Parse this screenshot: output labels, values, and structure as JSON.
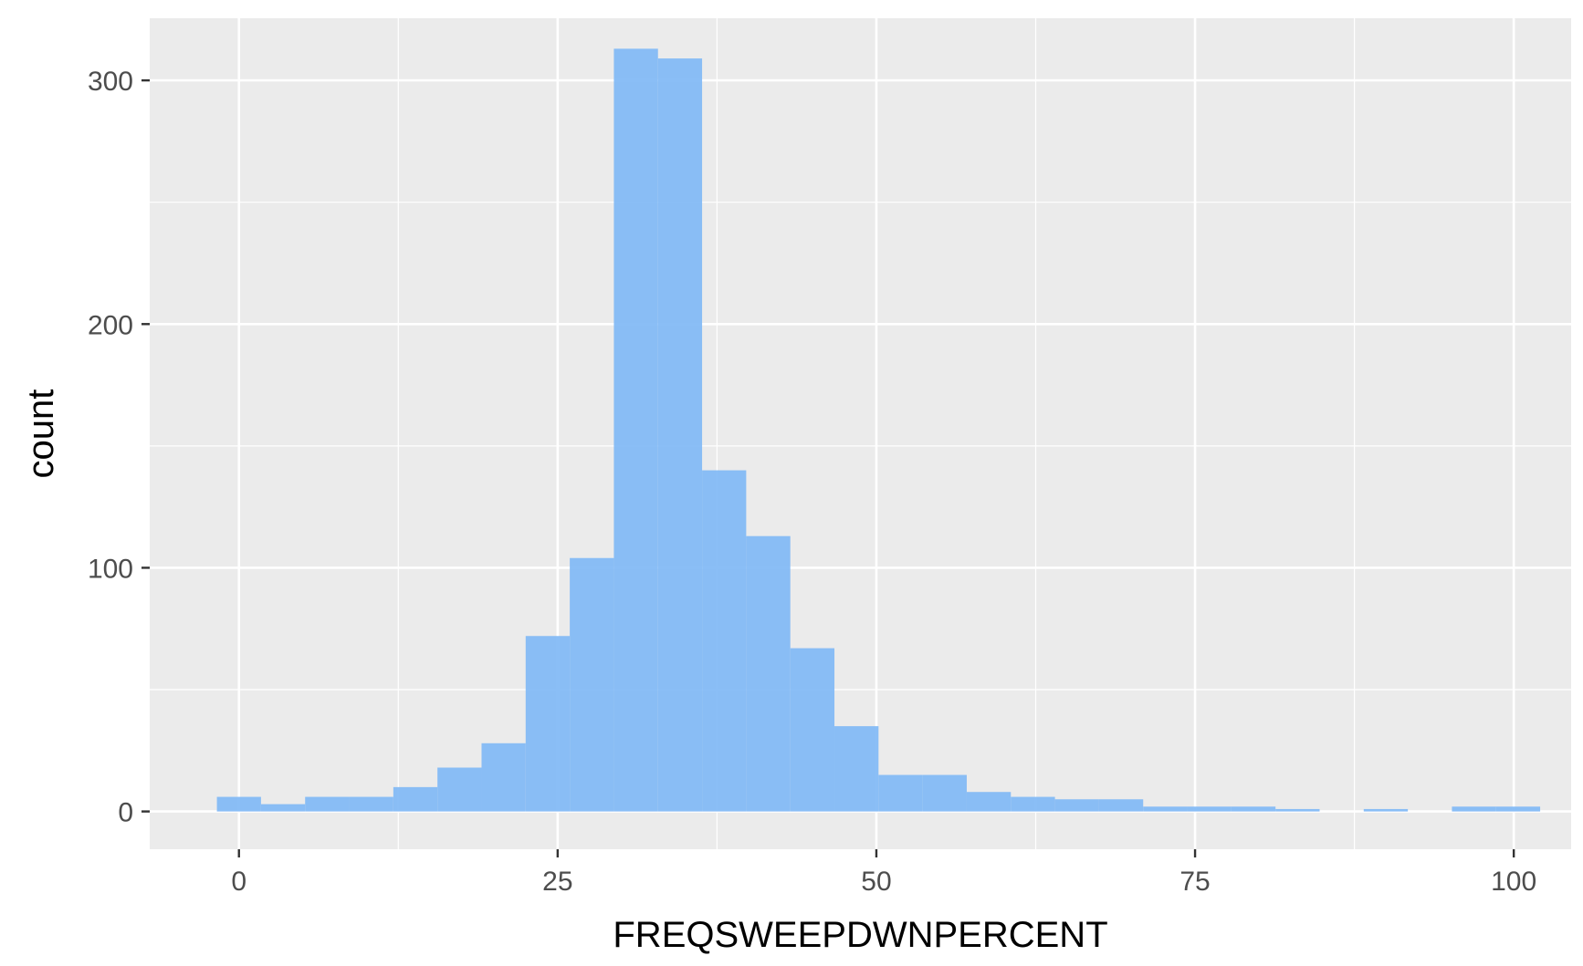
{
  "chart_data": {
    "type": "bar",
    "subtype": "histogram",
    "title": "",
    "xlabel": "FREQSWEEPDWNPERCENT",
    "ylabel": "count",
    "xlim": [
      -7,
      104.5
    ],
    "ylim": [
      -15.5,
      325.5
    ],
    "x_ticks": [
      0,
      25,
      50,
      75,
      100
    ],
    "y_ticks": [
      0,
      100,
      200,
      300
    ],
    "grid": true,
    "legend": "none",
    "bin_width": 3.46,
    "bins": [
      {
        "x0": -1.73,
        "x1": 1.73,
        "count": 6
      },
      {
        "x0": 1.73,
        "x1": 5.19,
        "count": 3
      },
      {
        "x0": 5.19,
        "x1": 8.65,
        "count": 6
      },
      {
        "x0": 8.65,
        "x1": 12.11,
        "count": 6
      },
      {
        "x0": 12.11,
        "x1": 15.57,
        "count": 10
      },
      {
        "x0": 15.57,
        "x1": 19.03,
        "count": 18
      },
      {
        "x0": 19.03,
        "x1": 22.49,
        "count": 28
      },
      {
        "x0": 22.49,
        "x1": 25.95,
        "count": 72
      },
      {
        "x0": 25.95,
        "x1": 29.41,
        "count": 104
      },
      {
        "x0": 29.41,
        "x1": 32.87,
        "count": 313
      },
      {
        "x0": 32.87,
        "x1": 36.33,
        "count": 309
      },
      {
        "x0": 36.33,
        "x1": 39.79,
        "count": 140
      },
      {
        "x0": 39.79,
        "x1": 43.25,
        "count": 113
      },
      {
        "x0": 43.25,
        "x1": 46.71,
        "count": 67
      },
      {
        "x0": 46.71,
        "x1": 50.17,
        "count": 35
      },
      {
        "x0": 50.17,
        "x1": 53.63,
        "count": 15
      },
      {
        "x0": 53.63,
        "x1": 57.09,
        "count": 15
      },
      {
        "x0": 57.09,
        "x1": 60.55,
        "count": 8
      },
      {
        "x0": 60.55,
        "x1": 64.01,
        "count": 6
      },
      {
        "x0": 64.01,
        "x1": 67.47,
        "count": 5
      },
      {
        "x0": 67.47,
        "x1": 70.93,
        "count": 5
      },
      {
        "x0": 70.93,
        "x1": 74.39,
        "count": 2
      },
      {
        "x0": 74.39,
        "x1": 77.85,
        "count": 2
      },
      {
        "x0": 77.85,
        "x1": 81.31,
        "count": 2
      },
      {
        "x0": 81.31,
        "x1": 84.77,
        "count": 1
      },
      {
        "x0": 84.77,
        "x1": 88.23,
        "count": 0
      },
      {
        "x0": 88.23,
        "x1": 91.69,
        "count": 1
      },
      {
        "x0": 91.69,
        "x1": 95.15,
        "count": 0
      },
      {
        "x0": 95.15,
        "x1": 98.61,
        "count": 2
      },
      {
        "x0": 98.61,
        "x1": 102.07,
        "count": 2
      }
    ],
    "colors": {
      "bar_fill": "#84bbf5",
      "panel_background": "#ebebeb",
      "grid": "#ffffff",
      "tick": "#333333"
    }
  }
}
